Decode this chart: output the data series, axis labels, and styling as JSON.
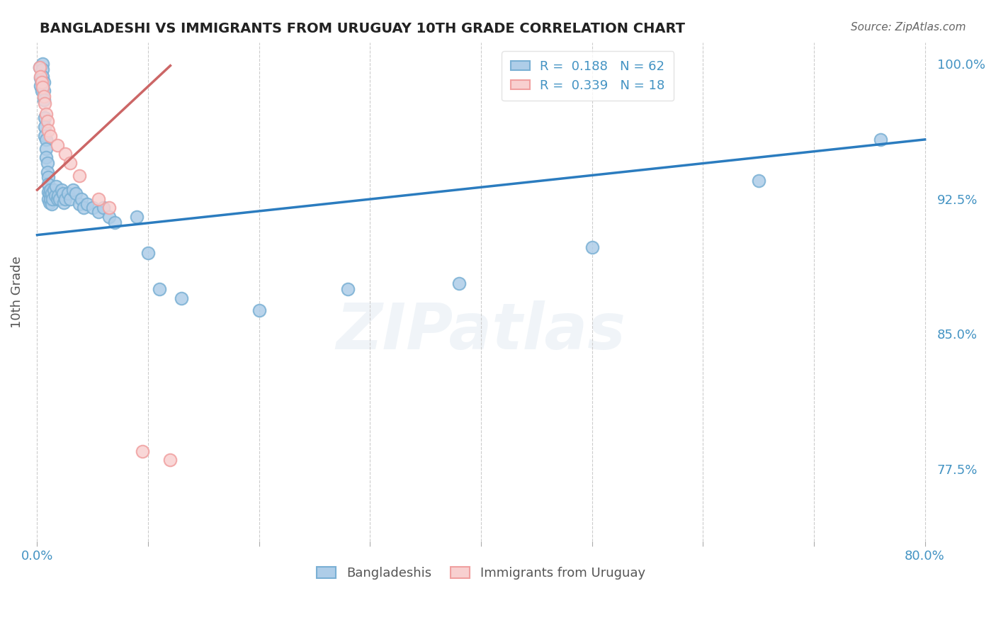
{
  "title": "BANGLADESHI VS IMMIGRANTS FROM URUGUAY 10TH GRADE CORRELATION CHART",
  "source": "Source: ZipAtlas.com",
  "ylabel": "10th Grade",
  "legend_blue_r": "R =  0.188",
  "legend_blue_n": "N = 62",
  "legend_pink_r": "R =  0.339",
  "legend_pink_n": "N = 18",
  "legend_blue_label": "Bangladeshis",
  "legend_pink_label": "Immigrants from Uruguay",
  "xlim": [
    -0.008,
    0.808
  ],
  "ylim": [
    0.735,
    1.012
  ],
  "ytick_vals": [
    0.775,
    0.85,
    0.925,
    1.0
  ],
  "ytick_labels": [
    "77.5%",
    "85.0%",
    "92.5%",
    "100.0%"
  ],
  "xtick_vals": [
    0.0,
    0.1,
    0.2,
    0.3,
    0.4,
    0.5,
    0.6,
    0.7,
    0.8
  ],
  "xtick_labels": [
    "0.0%",
    "",
    "",
    "",
    "",
    "",
    "",
    "",
    "80.0%"
  ],
  "blue_x": [
    0.002,
    0.003,
    0.003,
    0.004,
    0.005,
    0.005,
    0.005,
    0.006,
    0.006,
    0.006,
    0.007,
    0.007,
    0.007,
    0.008,
    0.008,
    0.008,
    0.009,
    0.009,
    0.01,
    0.01,
    0.01,
    0.01,
    0.011,
    0.011,
    0.012,
    0.012,
    0.013,
    0.013,
    0.014,
    0.015,
    0.016,
    0.017,
    0.018,
    0.019,
    0.02,
    0.022,
    0.023,
    0.024,
    0.025,
    0.028,
    0.03,
    0.032,
    0.035,
    0.038,
    0.04,
    0.042,
    0.045,
    0.05,
    0.055,
    0.06,
    0.065,
    0.07,
    0.09,
    0.1,
    0.11,
    0.13,
    0.2,
    0.28,
    0.38,
    0.5,
    0.65,
    0.76
  ],
  "blue_y": [
    0.998,
    0.992,
    0.988,
    0.985,
    1.0,
    0.997,
    0.993,
    0.99,
    0.985,
    0.98,
    0.97,
    0.965,
    0.96,
    0.958,
    0.953,
    0.948,
    0.945,
    0.94,
    0.937,
    0.933,
    0.929,
    0.925,
    0.928,
    0.923,
    0.93,
    0.925,
    0.928,
    0.922,
    0.925,
    0.93,
    0.927,
    0.932,
    0.925,
    0.927,
    0.925,
    0.93,
    0.928,
    0.923,
    0.925,
    0.928,
    0.925,
    0.93,
    0.928,
    0.922,
    0.925,
    0.92,
    0.922,
    0.92,
    0.918,
    0.92,
    0.915,
    0.912,
    0.915,
    0.895,
    0.875,
    0.87,
    0.863,
    0.875,
    0.878,
    0.898,
    0.935,
    0.958
  ],
  "pink_x": [
    0.002,
    0.003,
    0.004,
    0.005,
    0.006,
    0.007,
    0.008,
    0.009,
    0.01,
    0.012,
    0.018,
    0.025,
    0.03,
    0.038,
    0.055,
    0.065,
    0.095,
    0.12
  ],
  "pink_y": [
    0.998,
    0.993,
    0.99,
    0.987,
    0.982,
    0.978,
    0.972,
    0.968,
    0.963,
    0.96,
    0.955,
    0.95,
    0.945,
    0.938,
    0.925,
    0.92,
    0.785,
    0.78
  ],
  "blue_line_x0": 0.0,
  "blue_line_x1": 0.8,
  "blue_line_y0": 0.905,
  "blue_line_y1": 0.958,
  "pink_line_x0": 0.0,
  "pink_line_x1": 0.12,
  "pink_line_y0": 0.93,
  "pink_line_y1": 0.999,
  "watermark_text": "ZIPatlas",
  "bg_color": "#ffffff",
  "grid_color": "#cccccc",
  "blue_face": "#aecde8",
  "blue_edge": "#7ab0d4",
  "pink_face": "#f8d0d0",
  "pink_edge": "#f0a0a0",
  "line_blue": "#2b7cbf",
  "line_pink": "#cc6666",
  "axis_color": "#4393c3",
  "title_color": "#222222",
  "source_color": "#666666",
  "ylabel_color": "#555555"
}
